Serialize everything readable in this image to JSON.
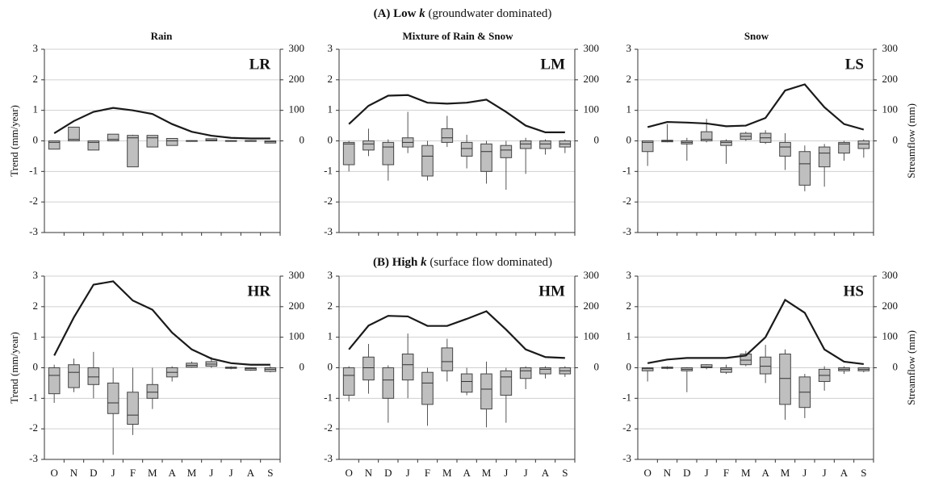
{
  "sections": [
    {
      "label": "(A) Low",
      "variable": "k",
      "note": "(groundwater dominated)"
    },
    {
      "label": "(B) High",
      "variable": "k",
      "note": "(surface flow dominated)"
    }
  ],
  "columns": [
    "Rain",
    "Mixture of Rain & Snow",
    "Snow"
  ],
  "chart_data": [
    {
      "type": "box",
      "title": "LR",
      "ylabel": "Trend (mm/year)",
      "categories": [
        null,
        null,
        null,
        null,
        null,
        null,
        null,
        null,
        null,
        null,
        null,
        null
      ],
      "ylim": [
        -3,
        3
      ],
      "yticks": [
        -3,
        -2,
        -1,
        0,
        1,
        2,
        3
      ],
      "y2lim": [
        -300,
        300
      ],
      "y2ticks": [
        0,
        100,
        200,
        300
      ],
      "grid": true,
      "boxes": {
        "color": "#bfbfbf",
        "low": [
          -0.27,
          0,
          -0.3,
          0,
          -0.85,
          -0.2,
          -0.15,
          -0.02,
          0,
          -0.02,
          -0.02,
          -0.08
        ],
        "q1": [
          -0.27,
          0,
          -0.3,
          0,
          -0.85,
          -0.2,
          -0.15,
          -0.01,
          0,
          -0.01,
          -0.01,
          -0.07
        ],
        "median": [
          -0.05,
          0.05,
          -0.05,
          0.05,
          0.1,
          0.1,
          0,
          0,
          0.02,
          0,
          0,
          -0.02
        ],
        "q3": [
          0,
          0.45,
          0,
          0.22,
          0.18,
          0.18,
          0.08,
          0.01,
          0.07,
          0.01,
          0.01,
          0
        ],
        "high": [
          0,
          0.45,
          0,
          0.22,
          0.2,
          0.18,
          0.08,
          0.02,
          0.07,
          0.02,
          0.02,
          0
        ]
      },
      "line": {
        "color": "#1a1a1a",
        "axis": "y2",
        "values": [
          25,
          65,
          95,
          108,
          100,
          88,
          55,
          30,
          17,
          10,
          8,
          8
        ]
      }
    },
    {
      "type": "box",
      "title": "LM",
      "categories": [
        null,
        null,
        null,
        null,
        null,
        null,
        null,
        null,
        null,
        null,
        null,
        null
      ],
      "ylim": [
        -3,
        3
      ],
      "yticks": [
        -3,
        -2,
        -1,
        0,
        1,
        2,
        3
      ],
      "y2lim": [
        -300,
        300
      ],
      "y2ticks": [
        0,
        100,
        200,
        300
      ],
      "grid": true,
      "boxes": {
        "color": "#bfbfbf",
        "low": [
          -1.0,
          -0.5,
          -1.3,
          -0.4,
          -1.3,
          -0.2,
          -0.9,
          -1.4,
          -1.6,
          -1.08,
          -0.45,
          -0.4
        ],
        "q1": [
          -0.78,
          -0.3,
          -0.78,
          -0.2,
          -1.15,
          -0.05,
          -0.5,
          -1.0,
          -0.55,
          -0.25,
          -0.25,
          -0.2
        ],
        "median": [
          -0.1,
          -0.1,
          -0.2,
          -0.05,
          -0.5,
          0.1,
          -0.25,
          -0.35,
          -0.3,
          -0.1,
          -0.1,
          -0.1
        ],
        "q3": [
          -0.05,
          0,
          -0.05,
          0.1,
          -0.15,
          0.4,
          -0.05,
          -0.1,
          -0.15,
          0,
          0,
          0
        ],
        "high": [
          0,
          0.4,
          0.05,
          0.95,
          0,
          0.82,
          0.2,
          0,
          0,
          0.1,
          0.05,
          0.05
        ]
      },
      "line": {
        "color": "#1a1a1a",
        "axis": "y2",
        "values": [
          55,
          115,
          148,
          150,
          125,
          122,
          125,
          135,
          95,
          50,
          28,
          28
        ]
      }
    },
    {
      "type": "box",
      "title": "LS",
      "y2label": "Streamflow (mm)",
      "categories": [
        null,
        null,
        null,
        null,
        null,
        null,
        null,
        null,
        null,
        null,
        null,
        null
      ],
      "ylim": [
        -3,
        3
      ],
      "yticks": [
        -3,
        -2,
        -1,
        0,
        1,
        2,
        3
      ],
      "y2lim": [
        -300,
        300
      ],
      "y2ticks": [
        0,
        100,
        200,
        300
      ],
      "grid": true,
      "boxes": {
        "color": "#bfbfbf",
        "low": [
          -0.82,
          -0.05,
          -0.65,
          -0.05,
          -0.75,
          0,
          -0.1,
          -0.95,
          -1.65,
          -1.5,
          -0.65,
          -0.55
        ],
        "q1": [
          -0.35,
          -0.03,
          -0.1,
          0,
          -0.15,
          0.05,
          -0.05,
          -0.5,
          -1.45,
          -0.85,
          -0.4,
          -0.25
        ],
        "median": [
          -0.05,
          0,
          -0.05,
          0.05,
          -0.05,
          0.15,
          0.1,
          -0.2,
          -0.75,
          -0.4,
          -0.1,
          -0.1
        ],
        "q3": [
          0,
          0.02,
          0,
          0.3,
          0,
          0.25,
          0.25,
          -0.05,
          -0.35,
          -0.2,
          -0.05,
          0
        ],
        "high": [
          0,
          0.55,
          0.1,
          0.72,
          0.05,
          0.3,
          0.35,
          0.25,
          -0.15,
          -0.1,
          0,
          0.05
        ]
      },
      "line": {
        "color": "#1a1a1a",
        "axis": "y2",
        "values": [
          45,
          62,
          60,
          57,
          48,
          50,
          75,
          165,
          185,
          110,
          55,
          37
        ]
      }
    },
    {
      "type": "box",
      "title": "HR",
      "ylabel": "Trend (mm/year)",
      "categories": [
        "O",
        "N",
        "D",
        "J",
        "F",
        "M",
        "A",
        "M",
        "J",
        "J",
        "A",
        "S"
      ],
      "ylim": [
        -3,
        3
      ],
      "yticks": [
        -3,
        -2,
        -1,
        0,
        1,
        2,
        3
      ],
      "y2lim": [
        -300,
        300
      ],
      "y2ticks": [
        0,
        100,
        200,
        300
      ],
      "grid": true,
      "boxes": {
        "color": "#bfbfbf",
        "low": [
          -1.15,
          -0.8,
          -1.0,
          -2.85,
          -2.2,
          -1.35,
          -0.45,
          0,
          0,
          -0.05,
          -0.1,
          -0.15
        ],
        "q1": [
          -0.85,
          -0.65,
          -0.55,
          -1.5,
          -1.85,
          -1.0,
          -0.3,
          0.02,
          0.05,
          -0.02,
          -0.08,
          -0.12
        ],
        "median": [
          -0.25,
          -0.15,
          -0.3,
          -1.15,
          -1.55,
          -0.8,
          -0.15,
          0.08,
          0.12,
          0,
          -0.03,
          -0.05
        ],
        "q3": [
          0,
          0.1,
          0,
          -0.5,
          -0.8,
          -0.55,
          0,
          0.15,
          0.2,
          0.02,
          0,
          0
        ],
        "high": [
          0.1,
          0.3,
          0.52,
          0,
          0,
          0,
          0.05,
          0.2,
          0.35,
          0.05,
          0.02,
          0.05
        ]
      },
      "line": {
        "color": "#1a1a1a",
        "axis": "y2",
        "values": [
          40,
          165,
          272,
          283,
          220,
          190,
          115,
          60,
          30,
          15,
          10,
          10
        ]
      }
    },
    {
      "type": "box",
      "title": "HM",
      "categories": [
        "O",
        "N",
        "D",
        "J",
        "F",
        "M",
        "A",
        "M",
        "J",
        "J",
        "A",
        "S"
      ],
      "ylim": [
        -3,
        3
      ],
      "yticks": [
        -3,
        -2,
        -1,
        0,
        1,
        2,
        3
      ],
      "y2lim": [
        -300,
        300
      ],
      "y2ticks": [
        0,
        100,
        200,
        300
      ],
      "grid": true,
      "boxes": {
        "color": "#bfbfbf",
        "low": [
          -1.1,
          -0.85,
          -1.8,
          -1.0,
          -1.9,
          -0.45,
          -0.9,
          -1.95,
          -1.8,
          -0.7,
          -0.35,
          -0.3
        ],
        "q1": [
          -0.9,
          -0.4,
          -1.0,
          -0.4,
          -1.2,
          -0.1,
          -0.8,
          -1.35,
          -0.9,
          -0.35,
          -0.2,
          -0.2
        ],
        "median": [
          -0.25,
          0,
          -0.4,
          0.1,
          -0.5,
          0.2,
          -0.45,
          -0.7,
          -0.3,
          -0.1,
          -0.05,
          -0.1
        ],
        "q3": [
          0,
          0.35,
          0,
          0.45,
          -0.15,
          0.65,
          -0.2,
          -0.2,
          -0.1,
          0,
          0,
          0
        ],
        "high": [
          0.05,
          0.78,
          0.08,
          1.12,
          0,
          0.95,
          0,
          0.2,
          0,
          0.05,
          0.05,
          0.05
        ]
      },
      "line": {
        "color": "#1a1a1a",
        "axis": "y2",
        "values": [
          60,
          138,
          170,
          168,
          137,
          137,
          160,
          185,
          125,
          60,
          35,
          32
        ]
      }
    },
    {
      "type": "box",
      "title": "HS",
      "y2label": "Streamflow (mm)",
      "categories": [
        "O",
        "N",
        "D",
        "J",
        "F",
        "M",
        "A",
        "M",
        "J",
        "J",
        "A",
        "S"
      ],
      "ylim": [
        -3,
        3
      ],
      "yticks": [
        -3,
        -2,
        -1,
        0,
        1,
        2,
        3
      ],
      "y2lim": [
        -300,
        300
      ],
      "y2ticks": [
        0,
        100,
        200,
        300
      ],
      "grid": true,
      "boxes": {
        "color": "#bfbfbf",
        "low": [
          -0.45,
          -0.05,
          -0.8,
          -0.05,
          -0.2,
          0.05,
          -0.5,
          -1.7,
          -1.65,
          -0.75,
          -0.2,
          -0.15
        ],
        "q1": [
          -0.1,
          -0.02,
          -0.1,
          0,
          -0.15,
          0.1,
          -0.2,
          -1.2,
          -1.3,
          -0.45,
          -0.1,
          -0.1
        ],
        "median": [
          -0.03,
          0,
          -0.05,
          0.03,
          -0.05,
          0.25,
          0.05,
          -0.35,
          -0.8,
          -0.25,
          -0.05,
          -0.05
        ],
        "q3": [
          0,
          0.02,
          0,
          0.1,
          0,
          0.45,
          0.35,
          0.45,
          -0.3,
          -0.05,
          0,
          0
        ],
        "high": [
          0.02,
          0.05,
          0.02,
          0.12,
          0.1,
          0.55,
          0.75,
          0.6,
          -0.2,
          0.05,
          0.05,
          0.02
        ]
      },
      "line": {
        "color": "#1a1a1a",
        "axis": "y2",
        "values": [
          15,
          27,
          32,
          32,
          32,
          40,
          100,
          222,
          180,
          60,
          20,
          12
        ]
      }
    }
  ]
}
